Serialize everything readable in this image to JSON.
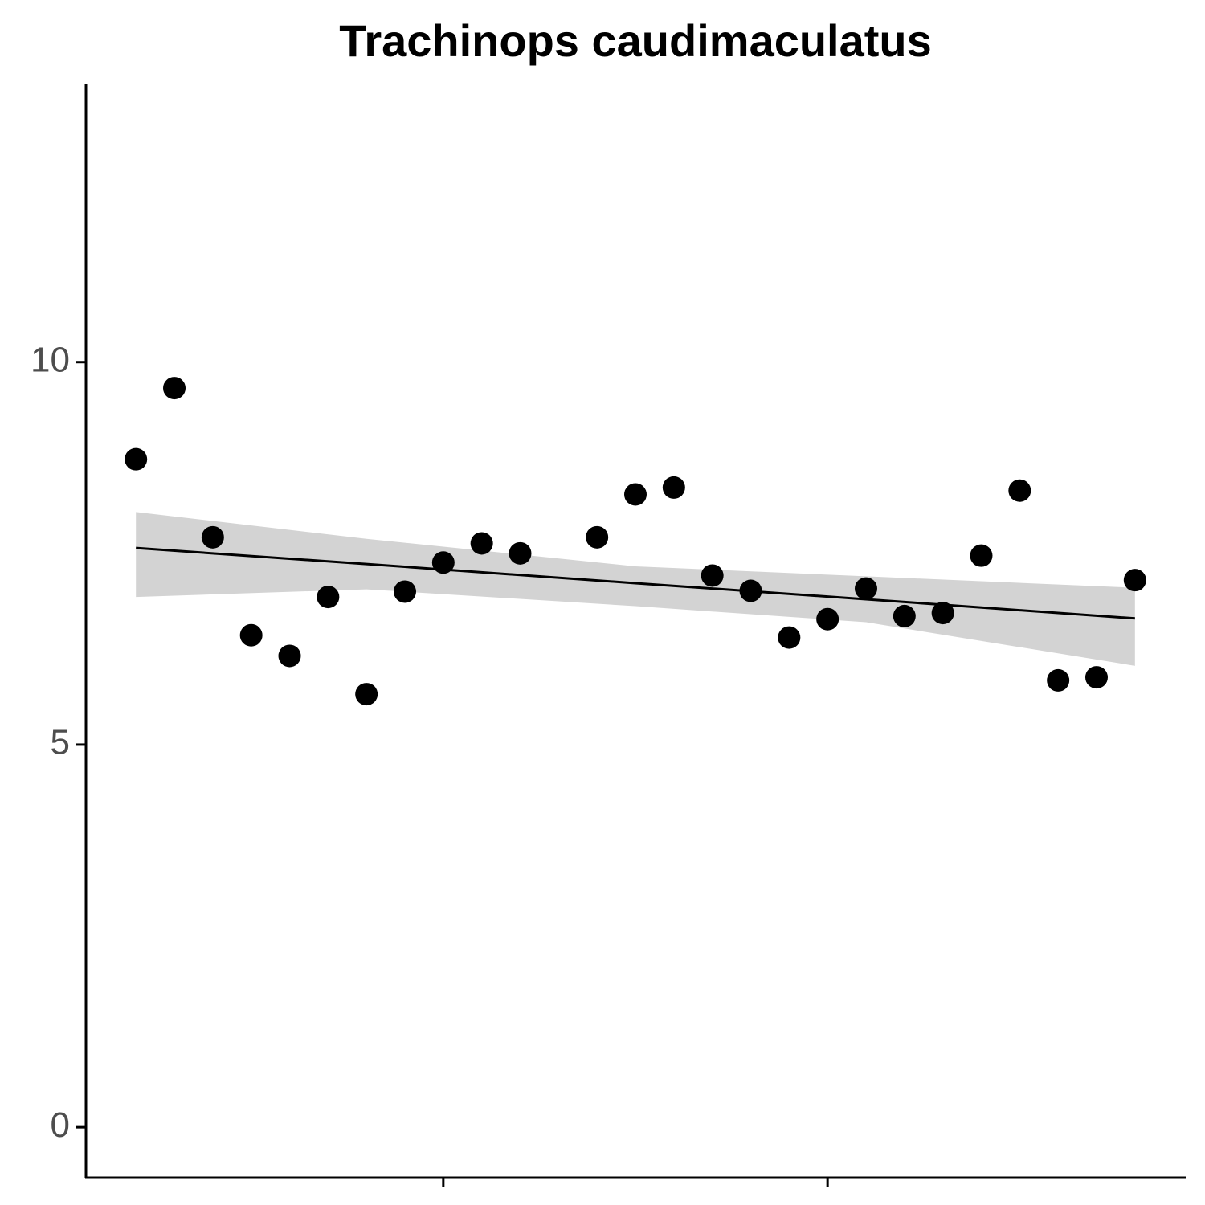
{
  "chart_data": {
    "type": "scatter",
    "title": "Trachinops caudimaculatus",
    "x": [
      1,
      2,
      3,
      4,
      5,
      6,
      7,
      8,
      9,
      10,
      11,
      13,
      14,
      15,
      16,
      17,
      18,
      19,
      20,
      21,
      22,
      23,
      24,
      25,
      26,
      27
    ],
    "values": [
      8.73,
      9.66,
      7.71,
      6.43,
      6.16,
      6.93,
      5.66,
      7.0,
      7.38,
      7.63,
      7.5,
      7.71,
      8.27,
      8.36,
      7.21,
      7.01,
      6.4,
      6.64,
      7.04,
      6.68,
      6.72,
      7.47,
      8.32,
      5.84,
      5.88,
      7.15
    ],
    "color": "#000000",
    "fit": {
      "x": [
        1,
        7,
        14,
        20,
        27
      ],
      "values": [
        7.57,
        7.36,
        7.11,
        6.9,
        6.65
      ],
      "upper": [
        8.04,
        7.69,
        7.33,
        7.2,
        7.05
      ],
      "lower": [
        6.93,
        7.03,
        6.81,
        6.6,
        6.03
      ],
      "color": "#000000",
      "band_color": "#d3d3d3"
    },
    "xlim": [
      -0.3,
      28.3
    ],
    "ylim": [
      -0.66,
      13.63
    ],
    "xticks": [
      9,
      19
    ],
    "yticks": [
      0,
      5,
      10
    ]
  }
}
